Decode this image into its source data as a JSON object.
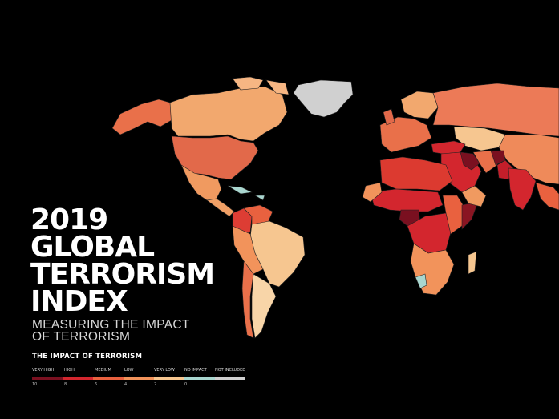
{
  "title_lines": [
    "2019",
    "GLOBAL",
    "TERRORISM",
    "INDEX"
  ],
  "subtitle_lines": [
    "MEASURING THE IMPACT",
    "OF TERRORISM"
  ],
  "legend": {
    "title": "THE IMPACT OF TERRORISM",
    "categories": [
      {
        "label": "VERY HIGH",
        "color": "#7a1020"
      },
      {
        "label": "HIGH",
        "color": "#d3262e"
      },
      {
        "label": "MEDIUM",
        "color": "#e9613f"
      },
      {
        "label": "LOW",
        "color": "#f2935b"
      },
      {
        "label": "VERY LOW",
        "color": "#f6c690"
      },
      {
        "label": "NO IMPACT",
        "color": "#a9d6cf"
      },
      {
        "label": "NOT INCLUDED",
        "color": "#d0d0d0"
      }
    ],
    "scale_numbers": [
      "10",
      "8",
      "6",
      "4",
      "2",
      "0"
    ]
  },
  "map_regions": [
    {
      "region": "Greenland",
      "level": "NOT INCLUDED",
      "color": "#d0d0d0"
    },
    {
      "region": "Canada",
      "level": "LOW",
      "color": "#f2a86e"
    },
    {
      "region": "Alaska",
      "level": "MEDIUM",
      "color": "#e9704a"
    },
    {
      "region": "United States",
      "level": "MEDIUM",
      "color": "#e2694a"
    },
    {
      "region": "Mexico",
      "level": "LOW",
      "color": "#f09a60"
    },
    {
      "region": "Central America",
      "level": "LOW",
      "color": "#f0a066"
    },
    {
      "region": "Caribbean",
      "level": "NO IMPACT",
      "color": "#a9d6cf"
    },
    {
      "region": "Colombia",
      "level": "HIGH",
      "color": "#dd3d34"
    },
    {
      "region": "Venezuela",
      "level": "MEDIUM",
      "color": "#e9613f"
    },
    {
      "region": "Brazil",
      "level": "VERY LOW",
      "color": "#f6c690"
    },
    {
      "region": "Peru",
      "level": "LOW",
      "color": "#f2935b"
    },
    {
      "region": "Argentina",
      "level": "VERY LOW",
      "color": "#f8d5a8"
    },
    {
      "region": "Chile",
      "level": "MEDIUM",
      "color": "#e9704a"
    },
    {
      "region": "Western Europe",
      "level": "MEDIUM",
      "color": "#e9704a"
    },
    {
      "region": "Scandinavia",
      "level": "LOW",
      "color": "#f2a86e"
    },
    {
      "region": "Russia",
      "level": "MEDIUM",
      "color": "#ec7a57"
    },
    {
      "region": "Turkey",
      "level": "HIGH",
      "color": "#d3262e"
    },
    {
      "region": "Middle East",
      "level": "HIGH",
      "color": "#d3262e"
    },
    {
      "region": "Iraq",
      "level": "VERY HIGH",
      "color": "#7a1020"
    },
    {
      "region": "Afghanistan",
      "level": "VERY HIGH",
      "color": "#7a1020"
    },
    {
      "region": "Pakistan",
      "level": "HIGH",
      "color": "#c41e2a"
    },
    {
      "region": "India",
      "level": "HIGH",
      "color": "#d3262e"
    },
    {
      "region": "Central Asia",
      "level": "VERY LOW",
      "color": "#f6c690"
    },
    {
      "region": "China",
      "level": "MEDIUM",
      "color": "#ef8a5a"
    },
    {
      "region": "North Africa",
      "level": "HIGH",
      "color": "#dc3a30"
    },
    {
      "region": "Sahel",
      "level": "HIGH",
      "color": "#d3262e"
    },
    {
      "region": "Nigeria",
      "level": "VERY HIGH",
      "color": "#7a1020"
    },
    {
      "region": "Central Africa",
      "level": "HIGH",
      "color": "#d3262e"
    },
    {
      "region": "East Africa",
      "level": "MEDIUM",
      "color": "#e9613f"
    },
    {
      "region": "Somalia",
      "level": "VERY HIGH",
      "color": "#8a1522"
    },
    {
      "region": "Southern Africa",
      "level": "LOW",
      "color": "#f2935b"
    },
    {
      "region": "Madagascar",
      "level": "VERY LOW",
      "color": "#f6c690"
    }
  ]
}
